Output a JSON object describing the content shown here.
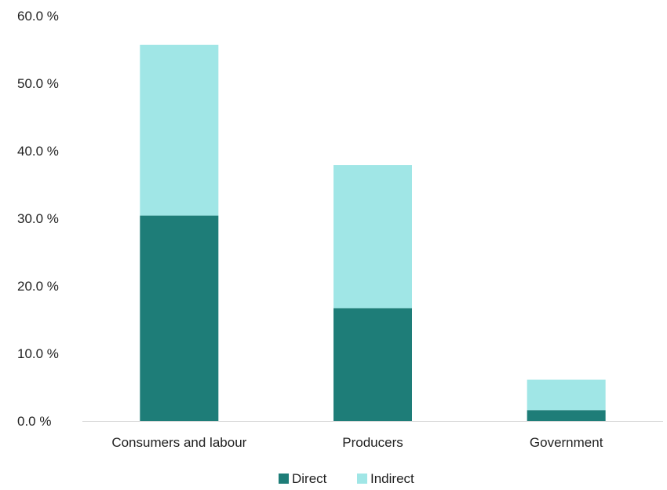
{
  "chart_data": {
    "type": "bar",
    "stacked": true,
    "categories": [
      "Consumers and labour",
      "Producers",
      "Government"
    ],
    "series": [
      {
        "name": "Direct",
        "color": "#1e7d78",
        "values": [
          30.4,
          16.7,
          1.6
        ]
      },
      {
        "name": "Indirect",
        "color": "#a0e6e6",
        "values": [
          25.3,
          21.2,
          4.5
        ]
      }
    ],
    "ylim": [
      0,
      60
    ],
    "yticks": [
      0,
      10,
      20,
      30,
      40,
      50,
      60
    ],
    "ytick_labels": [
      "0.0 %",
      "10.0 %",
      "20.0 %",
      "30.0 %",
      "40.0 %",
      "50.0 %",
      "60.0 %"
    ],
    "grid": false,
    "legend_position": "bottom-center",
    "axis_color": "#d0d0d0"
  }
}
